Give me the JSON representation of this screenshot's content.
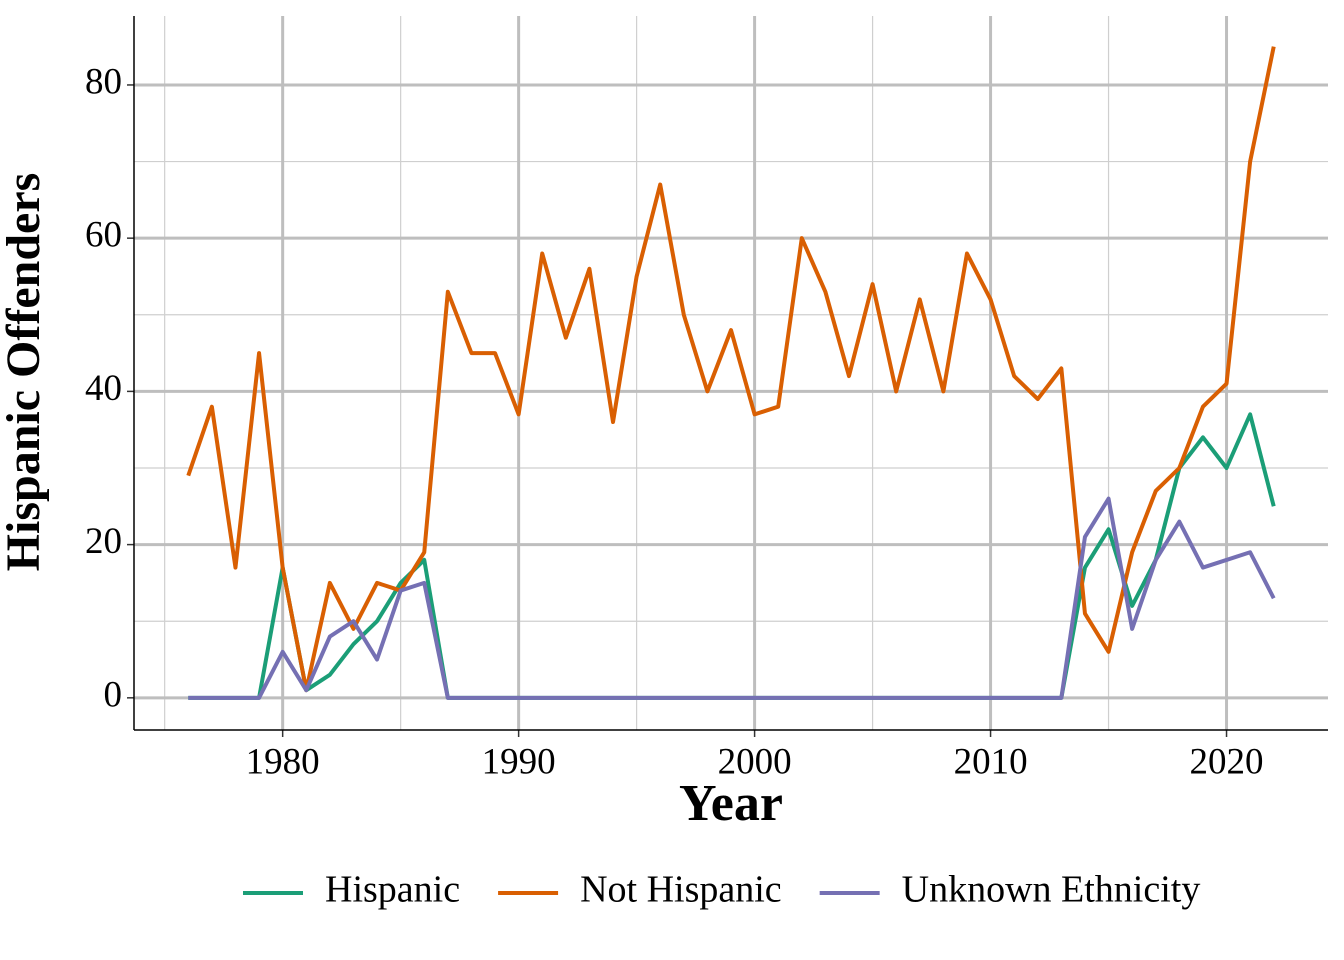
{
  "chart_data": {
    "type": "line",
    "x_label": "Year",
    "y_label": "Hispanic Offenders",
    "x": [
      1976,
      1977,
      1978,
      1979,
      1980,
      1981,
      1982,
      1983,
      1984,
      1985,
      1986,
      1987,
      1988,
      1989,
      1990,
      1991,
      1992,
      1993,
      1994,
      1995,
      1996,
      1997,
      1998,
      1999,
      2000,
      2001,
      2002,
      2003,
      2004,
      2005,
      2006,
      2007,
      2008,
      2009,
      2010,
      2011,
      2012,
      2013,
      2014,
      2015,
      2016,
      2017,
      2018,
      2019,
      2020,
      2021,
      2022
    ],
    "series": [
      {
        "name": "Hispanic",
        "color": "#1b9e77",
        "values": [
          0,
          0,
          0,
          0,
          17,
          1,
          3,
          7,
          10,
          15,
          18,
          0,
          0,
          0,
          0,
          0,
          0,
          0,
          0,
          0,
          0,
          0,
          0,
          0,
          0,
          0,
          0,
          0,
          0,
          0,
          0,
          0,
          0,
          0,
          0,
          0,
          0,
          0,
          17,
          22,
          12,
          18,
          30,
          34,
          30,
          37,
          25
        ]
      },
      {
        "name": "Not Hispanic",
        "color": "#d95f02",
        "values": [
          29,
          38,
          17,
          45,
          17,
          1,
          15,
          9,
          15,
          14,
          19,
          53,
          45,
          45,
          37,
          58,
          47,
          56,
          36,
          55,
          67,
          50,
          40,
          48,
          37,
          38,
          60,
          53,
          42,
          54,
          40,
          52,
          40,
          58,
          52,
          42,
          39,
          43,
          11,
          6,
          19,
          27,
          30,
          38,
          41,
          70,
          85
        ]
      },
      {
        "name": "Unknown Ethnicity",
        "color": "#7570b3",
        "values": [
          0,
          0,
          0,
          0,
          6,
          1,
          8,
          10,
          5,
          14,
          15,
          0,
          0,
          0,
          0,
          0,
          0,
          0,
          0,
          0,
          0,
          0,
          0,
          0,
          0,
          0,
          0,
          0,
          0,
          0,
          0,
          0,
          0,
          0,
          0,
          0,
          0,
          0,
          21,
          26,
          9,
          18,
          23,
          17,
          18,
          19,
          13
        ]
      }
    ],
    "xlim": [
      1973.7,
      2024.3
    ],
    "xticks": [
      1980,
      1990,
      2000,
      2010,
      2020
    ],
    "ylim": [
      -4.2,
      89
    ],
    "yticks": [
      0,
      20,
      40,
      60,
      80
    ],
    "grid": true,
    "legend": "bottom"
  }
}
